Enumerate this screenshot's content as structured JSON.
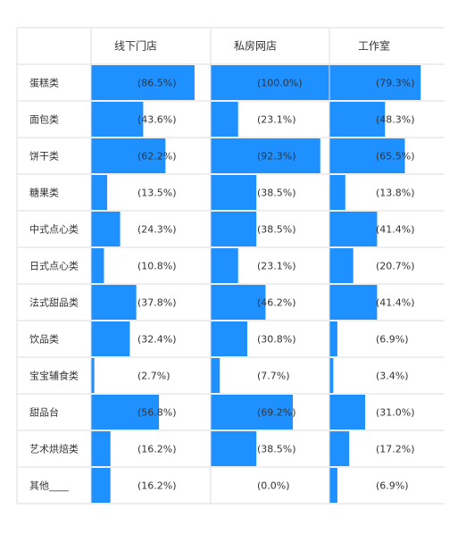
{
  "chart_data": {
    "type": "table",
    "columns": [
      "线下门店",
      "私房网店",
      "工作室"
    ],
    "rows": [
      "蛋糕类",
      "面包类",
      "饼干类",
      "糖果类",
      "中式点心类",
      "日式点心类",
      "法式甜品类",
      "饮品类",
      "宝宝辅食类",
      "甜品台",
      "艺术烘焙类",
      "其他____"
    ],
    "series": [
      {
        "name": "线下门店",
        "values": [
          86.5,
          43.6,
          62.2,
          13.5,
          24.3,
          10.8,
          37.8,
          32.4,
          2.7,
          56.8,
          16.2,
          16.2
        ]
      },
      {
        "name": "私房网店",
        "values": [
          100.0,
          23.1,
          92.3,
          38.5,
          38.5,
          23.1,
          46.2,
          30.8,
          7.7,
          69.2,
          38.5,
          0.0
        ]
      },
      {
        "name": "工作室",
        "values": [
          79.3,
          48.3,
          65.5,
          13.8,
          41.4,
          20.7,
          41.4,
          6.9,
          3.4,
          31.0,
          17.2,
          6.9
        ]
      }
    ],
    "labels": [
      [
        "(86.5%)",
        "(100.0%)",
        "(79.3%)"
      ],
      [
        "(43.6%)",
        "(23.1%)",
        "(48.3%)"
      ],
      [
        "(62.2%)",
        "(92.3%)",
        "(65.5%)"
      ],
      [
        "(13.5%)",
        "(38.5%)",
        "(13.8%)"
      ],
      [
        "(24.3%)",
        "(38.5%)",
        "(41.4%)"
      ],
      [
        "(10.8%)",
        "(23.1%)",
        "(20.7%)"
      ],
      [
        "(37.8%)",
        "(46.2%)",
        "(41.4%)"
      ],
      [
        "(32.4%)",
        "(30.8%)",
        "(6.9%)"
      ],
      [
        "(2.7%)",
        "(7.7%)",
        "(3.4%)"
      ],
      [
        "(56.8%)",
        "(69.2%)",
        "(31.0%)"
      ],
      [
        "(16.2%)",
        "(38.5%)",
        "(17.2%)"
      ],
      [
        "(16.2%)",
        "(0.0%)",
        "(6.9%)"
      ]
    ],
    "bar_color": "#1e90ff",
    "grid_color": "#dcdcdc",
    "value_max": 100
  }
}
